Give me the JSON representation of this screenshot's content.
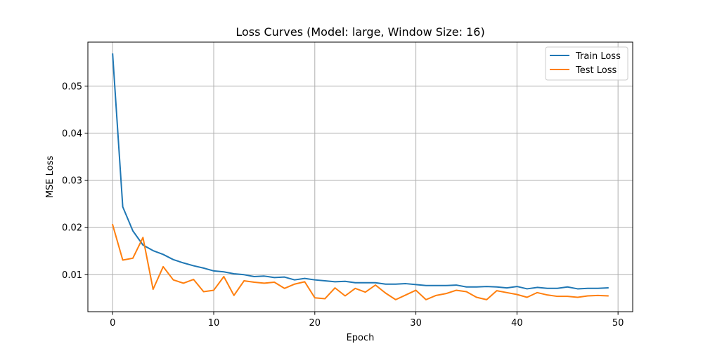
{
  "chart_data": {
    "type": "line",
    "title": "Loss Curves (Model: large, Window Size: 16)",
    "xlabel": "Epoch",
    "ylabel": "MSE Loss",
    "xlim": [
      -2.45,
      51.45
    ],
    "ylim": [
      0.00215,
      0.05935
    ],
    "xticks": [
      0,
      10,
      20,
      30,
      40,
      50
    ],
    "yticks": [
      0.01,
      0.02,
      0.03,
      0.04,
      0.05
    ],
    "xtick_labels": [
      "0",
      "10",
      "20",
      "30",
      "40",
      "50"
    ],
    "ytick_labels": [
      "0.01",
      "0.02",
      "0.03",
      "0.04",
      "0.05"
    ],
    "grid": true,
    "legend_position": "top-right",
    "x": [
      0,
      1,
      2,
      3,
      4,
      5,
      6,
      7,
      8,
      9,
      10,
      11,
      12,
      13,
      14,
      15,
      16,
      17,
      18,
      19,
      20,
      21,
      22,
      23,
      24,
      25,
      26,
      27,
      28,
      29,
      30,
      31,
      32,
      33,
      34,
      35,
      36,
      37,
      38,
      39,
      40,
      41,
      42,
      43,
      44,
      45,
      46,
      47,
      48,
      49
    ],
    "series": [
      {
        "name": "Train Loss",
        "color": "#1f77b4",
        "values": [
          0.0568,
          0.0244,
          0.0193,
          0.0163,
          0.0151,
          0.0143,
          0.0132,
          0.0125,
          0.0119,
          0.0114,
          0.0108,
          0.0106,
          0.0102,
          0.01,
          0.0096,
          0.0097,
          0.0094,
          0.0095,
          0.0089,
          0.0092,
          0.0089,
          0.0087,
          0.0085,
          0.0086,
          0.0083,
          0.0083,
          0.0083,
          0.008,
          0.008,
          0.0081,
          0.0079,
          0.0077,
          0.0077,
          0.0077,
          0.0078,
          0.0074,
          0.0074,
          0.0075,
          0.0074,
          0.0072,
          0.0075,
          0.007,
          0.0073,
          0.0071,
          0.0071,
          0.0074,
          0.007,
          0.0071,
          0.0071,
          0.0072
        ]
      },
      {
        "name": "Test Loss",
        "color": "#ff7f0e",
        "values": [
          0.0206,
          0.0131,
          0.0135,
          0.0179,
          0.0069,
          0.0117,
          0.0089,
          0.0082,
          0.009,
          0.0064,
          0.0067,
          0.0096,
          0.0056,
          0.0087,
          0.0084,
          0.0082,
          0.0084,
          0.0071,
          0.008,
          0.0085,
          0.0051,
          0.0049,
          0.0072,
          0.0055,
          0.0071,
          0.0063,
          0.0078,
          0.0061,
          0.0047,
          0.0057,
          0.0067,
          0.0047,
          0.0056,
          0.006,
          0.0067,
          0.0064,
          0.0052,
          0.0047,
          0.0066,
          0.0062,
          0.0058,
          0.0052,
          0.0062,
          0.0057,
          0.0054,
          0.0054,
          0.0052,
          0.0055,
          0.0056,
          0.0055
        ]
      }
    ]
  }
}
